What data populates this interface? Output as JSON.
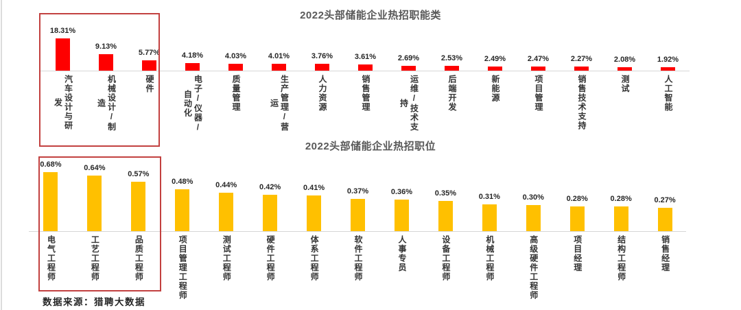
{
  "page": {
    "background": "#ffffff",
    "left_border_color": "#dcdcdc",
    "axis_color": "#d6d6d6",
    "title_color": "#595959",
    "highlight_box_color": "#c2403f"
  },
  "source_note": "数据来源：猎聘大数据",
  "chart_data": [
    {
      "type": "bar",
      "title": "2022头部储能企业热招职能类",
      "bar_color": "#fe0000",
      "unit": "%",
      "categories": [
        "汽车设计与研发",
        "机械设计/制造",
        "硬件",
        "电子/仪器/自动化",
        "质量管理",
        "生产管理/营运",
        "人力资源",
        "销售管理",
        "运维/技术支持",
        "后端开发",
        "新能源",
        "项目管理",
        "销售技术支持",
        "测试",
        "人工智能"
      ],
      "values": [
        18.31,
        9.13,
        5.77,
        4.18,
        4.03,
        4.01,
        3.76,
        3.61,
        2.69,
        2.53,
        2.49,
        2.47,
        2.27,
        2.08,
        1.92
      ],
      "value_label_format": "percent_2dp",
      "highlight_first_n": 3,
      "ylim": [
        0,
        20
      ],
      "grid": false,
      "legend": "none",
      "xlabel": "",
      "ylabel": ""
    },
    {
      "type": "bar",
      "title": "2022头部储能企业热招职位",
      "bar_color": "#ffc000",
      "unit": "%",
      "categories": [
        "电气工程师",
        "工艺工程师",
        "品质工程师",
        "项目管理工程师",
        "测试工程师",
        "硬件工程师",
        "体系工程师",
        "软件工程师",
        "人事专员",
        "设备工程师",
        "机械工程师",
        "高级硬件工程师",
        "项目经理",
        "结构工程师",
        "销售经理"
      ],
      "values": [
        0.68,
        0.64,
        0.57,
        0.48,
        0.44,
        0.42,
        0.41,
        0.37,
        0.36,
        0.35,
        0.31,
        0.3,
        0.28,
        0.28,
        0.27
      ],
      "value_label_format": "percent_2dp",
      "highlight_first_n": 3,
      "ylim": [
        0,
        0.7
      ],
      "grid": false,
      "legend": "none",
      "xlabel": "",
      "ylabel": ""
    }
  ]
}
